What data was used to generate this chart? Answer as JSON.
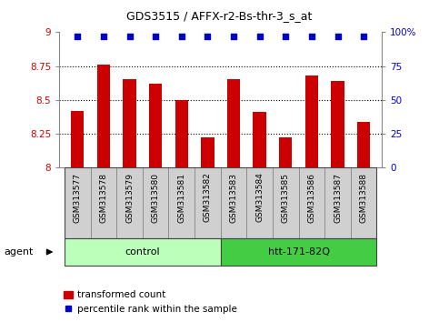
{
  "title": "GDS3515 / AFFX-r2-Bs-thr-3_s_at",
  "samples": [
    "GSM313577",
    "GSM313578",
    "GSM313579",
    "GSM313580",
    "GSM313581",
    "GSM313582",
    "GSM313583",
    "GSM313584",
    "GSM313585",
    "GSM313586",
    "GSM313587",
    "GSM313588"
  ],
  "bar_values": [
    8.42,
    8.76,
    8.65,
    8.62,
    8.5,
    8.22,
    8.65,
    8.41,
    8.22,
    8.68,
    8.64,
    8.34
  ],
  "percentile_values": [
    97,
    97,
    97,
    97,
    97,
    97,
    97,
    97,
    97,
    97,
    97,
    97
  ],
  "bar_color": "#cc0000",
  "percentile_color": "#0000cc",
  "ylim_lo": 8.0,
  "ylim_hi": 9.0,
  "yticks": [
    8.0,
    8.25,
    8.5,
    8.75,
    9.0
  ],
  "ytick_labels": [
    "8",
    "8.25",
    "8.5",
    "8.75",
    "9"
  ],
  "right_yticks": [
    0,
    25,
    50,
    75,
    100
  ],
  "right_ytick_labels": [
    "0",
    "25",
    "50",
    "75",
    "100%"
  ],
  "group_control_label": "control",
  "group_control_color": "#bbffbb",
  "group_htt_label": "htt-171-82Q",
  "group_htt_color": "#44cc44",
  "agent_label": "agent",
  "legend_bar_label": "transformed count",
  "legend_dot_label": "percentile rank within the sample",
  "tick_color_left": "#cc0000",
  "tick_color_right": "#0000cc",
  "cell_bg": "#d0d0d0",
  "cell_edge": "#888888",
  "spine_color": "#888888",
  "grid_dotted_color": "#000000",
  "title_fontsize": 9,
  "bar_width": 0.5
}
